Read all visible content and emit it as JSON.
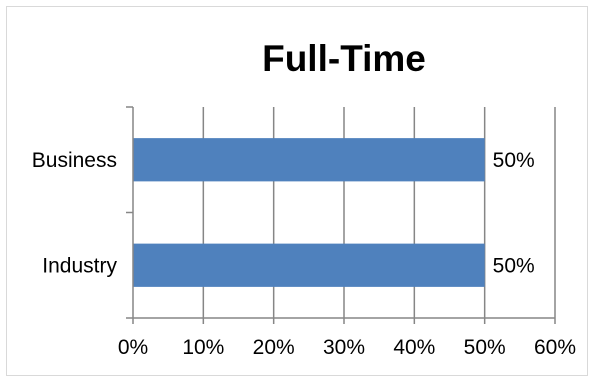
{
  "chart_data": {
    "type": "bar",
    "orientation": "horizontal",
    "title": "Full-Time",
    "categories": [
      "Business",
      "Industry"
    ],
    "values": [
      0.5,
      0.5
    ],
    "data_labels": [
      "50%",
      "50%"
    ],
    "xlim": [
      0,
      0.6
    ],
    "x_ticks": [
      0,
      0.1,
      0.2,
      0.3,
      0.4,
      0.5,
      0.6
    ],
    "x_tick_labels": [
      "0%",
      "10%",
      "20%",
      "30%",
      "40%",
      "50%",
      "60%"
    ],
    "xlabel": "",
    "ylabel": "",
    "grid": "vertical",
    "legend": "none",
    "bar_color": "#4f81bd",
    "grid_color": "#868686"
  }
}
